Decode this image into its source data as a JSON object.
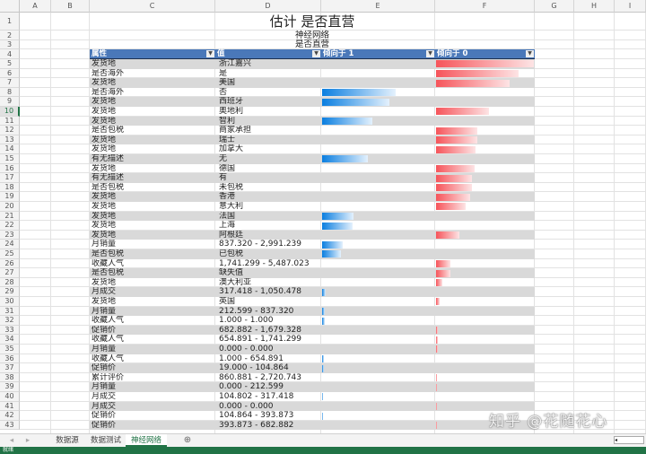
{
  "columns": [
    "A",
    "B",
    "C",
    "D",
    "E",
    "F",
    "G",
    "H",
    "I"
  ],
  "title": "估计 是否直营",
  "subtitle1": "神经网络",
  "subtitle2": "是否直营",
  "table_headers": [
    "属性",
    "值",
    "倾向于 1",
    "倾向于 0"
  ],
  "selected_row": 10,
  "colors": {
    "header_bg": "#4a78b9",
    "band_gray": "#d9d9d9",
    "bar_1": "#0a7ee0",
    "bar_0": "#f6545a",
    "excel_green": "#217346"
  },
  "rows": [
    {
      "attr": "发货地",
      "value": "浙江嘉兴",
      "favors": "0",
      "score": 100
    },
    {
      "attr": "是否海外",
      "value": "是",
      "favors": "0",
      "score": 84
    },
    {
      "attr": "发货地",
      "value": "美国",
      "favors": "0",
      "score": 75
    },
    {
      "attr": "是否海外",
      "value": "否",
      "favors": "1",
      "score": 75
    },
    {
      "attr": "发货地",
      "value": "西班牙",
      "favors": "1",
      "score": 69
    },
    {
      "attr": "发货地",
      "value": "奥地利",
      "favors": "0",
      "score": 54
    },
    {
      "attr": "发货地",
      "value": "智利",
      "favors": "1",
      "score": 51
    },
    {
      "attr": "是否包税",
      "value": "商家承担",
      "favors": "0",
      "score": 42
    },
    {
      "attr": "发货地",
      "value": "瑞士",
      "favors": "0",
      "score": 42
    },
    {
      "attr": "发货地",
      "value": "加拿大",
      "favors": "0",
      "score": 40
    },
    {
      "attr": "有无描述",
      "value": "无",
      "favors": "1",
      "score": 47
    },
    {
      "attr": "发货地",
      "value": "德国",
      "favors": "0",
      "score": 39
    },
    {
      "attr": "有无描述",
      "value": "有",
      "favors": "0",
      "score": 37
    },
    {
      "attr": "是否包税",
      "value": "未包税",
      "favors": "0",
      "score": 37
    },
    {
      "attr": "发货地",
      "value": "香港",
      "favors": "0",
      "score": 35
    },
    {
      "attr": "发货地",
      "value": "意大利",
      "favors": "0",
      "score": 30
    },
    {
      "attr": "发货地",
      "value": "法国",
      "favors": "1",
      "score": 32
    },
    {
      "attr": "发货地",
      "value": "上海",
      "favors": "1",
      "score": 31
    },
    {
      "attr": "发货地",
      "value": "阿根廷",
      "favors": "0",
      "score": 24
    },
    {
      "attr": "月销量",
      "value": "837.320 - 2,991.239",
      "favors": "1",
      "score": 21
    },
    {
      "attr": "是否包税",
      "value": "已包税",
      "favors": "1",
      "score": 19
    },
    {
      "attr": "收藏人气",
      "value": "1,741.299 - 5,487.023",
      "favors": "0",
      "score": 15
    },
    {
      "attr": "是否包税",
      "value": "缺失值",
      "favors": "0",
      "score": 15
    },
    {
      "attr": "发货地",
      "value": "澳大利亚",
      "favors": "0",
      "score": 6
    },
    {
      "attr": "月成交",
      "value": "317.418 - 1,050.478",
      "favors": "1",
      "score": 4
    },
    {
      "attr": "发货地",
      "value": "英国",
      "favors": "0",
      "score": 4
    },
    {
      "attr": "月销量",
      "value": "212.599 - 837.320",
      "favors": "1",
      "score": 3
    },
    {
      "attr": "收藏人气",
      "value": "1.000 - 1.000",
      "favors": "1",
      "score": 3
    },
    {
      "attr": "促销价",
      "value": "682.882 - 1,679.328",
      "favors": "0",
      "score": 2
    },
    {
      "attr": "收藏人气",
      "value": "654.891 - 1,741.299",
      "favors": "0",
      "score": 2
    },
    {
      "attr": "月销量",
      "value": "0.000 - 0.000",
      "favors": "0",
      "score": 2
    },
    {
      "attr": "收藏人气",
      "value": "1.000 - 654.891",
      "favors": "1",
      "score": 2
    },
    {
      "attr": "促销价",
      "value": "19.000 - 104.864",
      "favors": "1",
      "score": 2
    },
    {
      "attr": "累计评价",
      "value": "860.881 - 2,720.743",
      "favors": "0",
      "score": 1
    },
    {
      "attr": "月销量",
      "value": "0.000 - 212.599",
      "favors": "0",
      "score": 1
    },
    {
      "attr": "月成交",
      "value": "104.802 - 317.418",
      "favors": "1",
      "score": 1
    },
    {
      "attr": "月成交",
      "value": "0.000 - 0.000",
      "favors": "0",
      "score": 1
    },
    {
      "attr": "促销价",
      "value": "104.864 - 393.873",
      "favors": "1",
      "score": 1
    },
    {
      "attr": "促销价",
      "value": "393.873 - 682.882",
      "favors": "0",
      "score": 1
    }
  ],
  "sheet_tabs": [
    {
      "label": "数据源",
      "active": false
    },
    {
      "label": "数据测试",
      "active": false
    },
    {
      "label": "神经网络",
      "active": true
    }
  ],
  "add_sheet_icon": "plus-circle-icon",
  "status_text": "就绪",
  "watermark": "知乎 @花随花心"
}
